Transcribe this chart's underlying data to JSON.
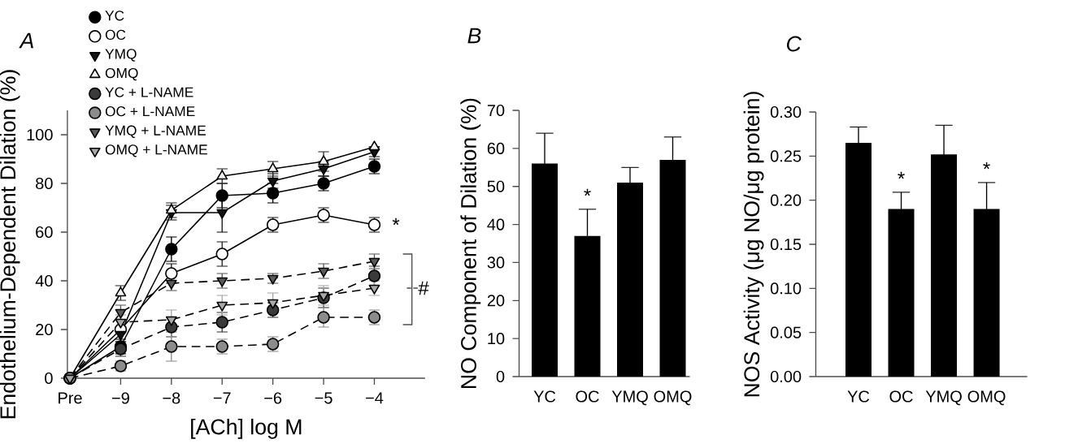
{
  "chart_data": [
    {
      "type": "line",
      "title": "A",
      "xlabel": "[ACh] log M",
      "ylabel": "Endothelium-Dependent Dilation (%)",
      "categories": [
        "Pre",
        "−9",
        "−8",
        "−7",
        "−6",
        "−5",
        "−4"
      ],
      "ylim": [
        0,
        110
      ],
      "yticks": [
        0,
        20,
        40,
        60,
        80,
        100
      ],
      "legend": "top left",
      "series": [
        {
          "name": "YC",
          "color": "#000000",
          "marker": "circle",
          "line_style": "solid",
          "values": [
            0,
            13,
            53,
            75,
            76,
            80,
            87
          ],
          "errors": [
            null,
            3,
            5,
            5,
            4,
            3,
            3
          ]
        },
        {
          "name": "OC",
          "color": "#ffffff",
          "marker": "circle",
          "line_style": "solid",
          "values": [
            0,
            20,
            43,
            51,
            63,
            67,
            63
          ],
          "errors": [
            null,
            null,
            4,
            5,
            3,
            3,
            3
          ]
        },
        {
          "name": "YMQ",
          "color": "#141414",
          "marker": "triangle-down",
          "line_style": "solid",
          "values": [
            0,
            18,
            68,
            68,
            81,
            86,
            93
          ],
          "errors": [
            null,
            3,
            3,
            8,
            3,
            3,
            2
          ]
        },
        {
          "name": "OMQ",
          "color": "#f2f2f2",
          "marker": "triangle",
          "line_style": "solid",
          "values": [
            0,
            35,
            69,
            83,
            86,
            89,
            95
          ],
          "errors": [
            null,
            3,
            3,
            3,
            3,
            4,
            null
          ]
        },
        {
          "name": "YC + L-NAME",
          "color": "#3a3a3a",
          "marker": "circle",
          "line_style": "dashed",
          "values": [
            0,
            12,
            21,
            23,
            28,
            33,
            42
          ],
          "errors": [
            null,
            3,
            4,
            4,
            3,
            4,
            4
          ]
        },
        {
          "name": "OC + L-NAME",
          "color": "#8c8c8c",
          "marker": "circle",
          "line_style": "dashed",
          "values": [
            0,
            5,
            13,
            13,
            14,
            25,
            25
          ],
          "errors": [
            null,
            2,
            6,
            3,
            3,
            4,
            3
          ]
        },
        {
          "name": "YMQ + L-NAME",
          "color": "#5a5a5a",
          "marker": "triangle-down",
          "line_style": "dashed",
          "values": [
            0,
            27,
            39,
            40,
            41,
            44,
            48
          ],
          "errors": [
            null,
            3,
            3,
            3,
            2,
            3,
            3
          ]
        },
        {
          "name": "OMQ + L-NAME",
          "color": "#a8a8a8",
          "marker": "triangle-down",
          "line_style": "dashed",
          "values": [
            0,
            23,
            24,
            30,
            31,
            34,
            37
          ],
          "errors": [
            null,
            3,
            4,
            4,
            4,
            4,
            3
          ]
        }
      ],
      "annotations": [
        {
          "text": "*",
          "x": "−4",
          "y": 63
        },
        {
          "text": "#",
          "x": "−4",
          "y": 37
        }
      ]
    },
    {
      "type": "bar",
      "title": "B",
      "ylabel": "NO Component of Dilation (%)",
      "categories": [
        "YC",
        "OC",
        "YMQ",
        "OMQ"
      ],
      "values": [
        56,
        37,
        51,
        57
      ],
      "errors": [
        8,
        7,
        4,
        6
      ],
      "color": "#000000",
      "ylim": [
        0,
        70
      ],
      "yticks": [
        0,
        10,
        20,
        30,
        40,
        50,
        60,
        70
      ],
      "annotations": [
        {
          "text": "*",
          "x": "OC",
          "y": 37
        }
      ]
    },
    {
      "type": "bar",
      "title": "C",
      "ylabel": "NOS Activity (μg NO/μg protein)",
      "categories": [
        "YC",
        "OC",
        "YMQ",
        "OMQ"
      ],
      "values": [
        0.265,
        0.19,
        0.252,
        0.19
      ],
      "errors": [
        0.018,
        0.019,
        0.033,
        0.03
      ],
      "color": "#000000",
      "ylim": [
        0,
        0.3
      ],
      "yticks": [
        {
          "value": 0,
          "label": "0.00"
        },
        0.05,
        {
          "value": 0.1,
          "label": "0.10"
        },
        0.15,
        {
          "value": 0.2,
          "label": "0.20"
        },
        0.25,
        {
          "value": 0.3,
          "label": "0.30"
        }
      ],
      "annotations": [
        {
          "text": "*",
          "x": "OC",
          "y": 0.19
        },
        {
          "text": "*",
          "x": "OMQ",
          "y": 0.19
        }
      ]
    }
  ]
}
